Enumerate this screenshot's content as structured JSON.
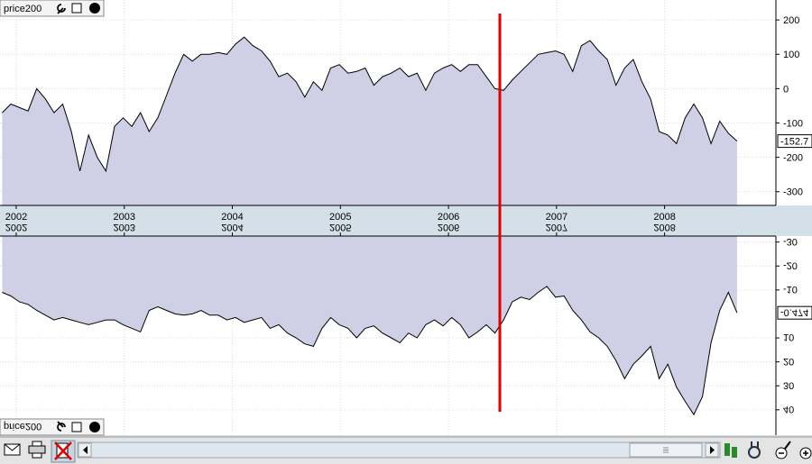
{
  "chart_data": [
    {
      "type": "area",
      "title": "price200",
      "x": [
        2001.87,
        2001.95,
        2002.03,
        2002.11,
        2002.19,
        2002.27,
        2002.35,
        2002.43,
        2002.51,
        2002.59,
        2002.67,
        2002.75,
        2002.83,
        2002.91,
        2002.99,
        2003.07,
        2003.15,
        2003.23,
        2003.31,
        2003.39,
        2003.47,
        2003.55,
        2003.63,
        2003.71,
        2003.79,
        2003.87,
        2003.95,
        2004.03,
        2004.11,
        2004.19,
        2004.27,
        2004.35,
        2004.43,
        2004.51,
        2004.59,
        2004.67,
        2004.75,
        2004.83,
        2004.91,
        2004.99,
        2005.07,
        2005.15,
        2005.23,
        2005.31,
        2005.39,
        2005.47,
        2005.55,
        2005.63,
        2005.71,
        2005.79,
        2005.87,
        2005.95,
        2006.03,
        2006.11,
        2006.19,
        2006.27,
        2006.35,
        2006.43,
        2006.51,
        2006.59,
        2006.67,
        2006.75,
        2006.83,
        2006.91,
        2006.99,
        2007.07,
        2007.15,
        2007.23,
        2007.31,
        2007.39,
        2007.47,
        2007.55,
        2007.63,
        2007.71,
        2007.79,
        2007.87,
        2007.95,
        2008.03,
        2008.11,
        2008.19,
        2008.27,
        2008.35,
        2008.43,
        2008.51,
        2008.59,
        2008.67
      ],
      "series": [
        {
          "name": "price200",
          "color": "#cfcfe6",
          "line_color": "#000000",
          "values": [
            -70,
            -45,
            -55,
            -65,
            0,
            -30,
            -70,
            -45,
            -125,
            -240,
            -135,
            -200,
            -240,
            -110,
            -85,
            -110,
            -70,
            -125,
            -85,
            -20,
            45,
            100,
            80,
            100,
            100,
            105,
            100,
            130,
            150,
            125,
            110,
            80,
            35,
            45,
            20,
            -25,
            20,
            -5,
            60,
            70,
            45,
            50,
            60,
            10,
            35,
            45,
            60,
            35,
            45,
            -5,
            45,
            60,
            70,
            50,
            70,
            70,
            35,
            0,
            -5,
            25,
            50,
            75,
            100,
            105,
            110,
            100,
            50,
            125,
            140,
            110,
            85,
            10,
            60,
            85,
            20,
            -30,
            -125,
            -135,
            -160,
            -85,
            -45,
            -85,
            -160,
            -95,
            -130,
            -152.7
          ]
        }
      ],
      "xlim": [
        2001.85,
        2009.03
      ],
      "xticks": [
        2002,
        2003,
        2004,
        2005,
        2006,
        2007,
        2008
      ],
      "ylim": [
        -340,
        245
      ],
      "yticks": [
        -300,
        -200,
        -100,
        0,
        100,
        200
      ],
      "grid": true
    },
    {
      "type": "area",
      "title": "price200",
      "flipped": true,
      "x": [
        2001.87,
        2001.95,
        2002.03,
        2002.11,
        2002.19,
        2002.27,
        2002.35,
        2002.43,
        2002.51,
        2002.59,
        2002.67,
        2002.75,
        2002.83,
        2002.91,
        2002.99,
        2003.07,
        2003.15,
        2003.23,
        2003.31,
        2003.39,
        2003.47,
        2003.55,
        2003.63,
        2003.71,
        2003.79,
        2003.87,
        2003.95,
        2004.03,
        2004.11,
        2004.19,
        2004.27,
        2004.35,
        2004.43,
        2004.51,
        2004.59,
        2004.67,
        2004.75,
        2004.83,
        2004.91,
        2004.99,
        2005.07,
        2005.15,
        2005.23,
        2005.31,
        2005.39,
        2005.47,
        2005.55,
        2005.63,
        2005.71,
        2005.79,
        2005.87,
        2005.95,
        2006.03,
        2006.11,
        2006.19,
        2006.27,
        2006.35,
        2006.43,
        2006.51,
        2006.59,
        2006.67,
        2006.75,
        2006.83,
        2006.91,
        2006.99,
        2007.07,
        2007.15,
        2007.23,
        2007.31,
        2007.39,
        2007.47,
        2007.55,
        2007.63,
        2007.71,
        2007.79,
        2007.87,
        2007.95,
        2008.03,
        2008.11,
        2008.19,
        2008.27,
        2008.35,
        2008.43,
        2008.51,
        2008.59,
        2008.67
      ],
      "series": [
        {
          "name": "price200",
          "color": "#cfcfe6",
          "line_color": "#000000",
          "values": [
            -9,
            -7.5,
            -5,
            -4,
            -1.5,
            0.5,
            2.5,
            1.5,
            2.5,
            3.5,
            4.5,
            3.5,
            2.5,
            2.5,
            4.5,
            6,
            7.5,
            -1.5,
            -3,
            -1.5,
            0,
            0.5,
            0,
            -1.5,
            0.5,
            0.5,
            2.5,
            1.5,
            3.5,
            2.5,
            1.5,
            6,
            4.5,
            8,
            10,
            12.5,
            13.5,
            6,
            1.5,
            4.5,
            6,
            10,
            6,
            5,
            8,
            10,
            12,
            8,
            10,
            4.5,
            2.5,
            5,
            1.5,
            4.5,
            10,
            7.5,
            4.5,
            8,
            2.5,
            -5,
            -7,
            -6,
            -9,
            -11.5,
            -7,
            -7.5,
            -1.5,
            2.5,
            7.5,
            10,
            13.5,
            19.5,
            27,
            21,
            17.5,
            13.5,
            27,
            21,
            30.5,
            36.5,
            42,
            34.5,
            12,
            -1.5,
            -9,
            -0.474
          ]
        }
      ],
      "xlim": [
        2001.85,
        2009.03
      ],
      "xticks": [
        2002,
        2003,
        2004,
        2005,
        2006,
        2007,
        2008
      ],
      "ylim": [
        -32.5,
        45.7
      ],
      "yticks": [
        -30,
        -20,
        -10,
        10,
        20,
        30,
        40
      ],
      "grid": true
    }
  ]
}
